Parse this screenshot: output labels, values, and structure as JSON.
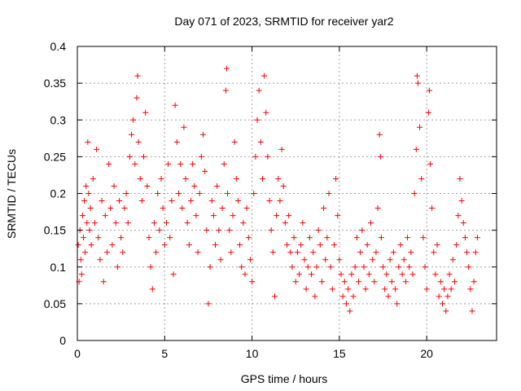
{
  "chart_data": {
    "type": "scatter",
    "title": "Day 071 of 2023, SRMTID for receiver yar2",
    "xlabel": "GPS time / hours",
    "ylabel": "SRMTID / TECUs",
    "xlim": [
      0,
      24
    ],
    "ylim": [
      0,
      0.4
    ],
    "xticks": [
      0,
      5,
      10,
      15,
      20
    ],
    "xtick_labels": [
      "0",
      "5",
      "10",
      "15",
      "20"
    ],
    "yticks": [
      0,
      0.05,
      0.1,
      0.15,
      0.2,
      0.25,
      0.3,
      0.35,
      0.4
    ],
    "ytick_labels": [
      "0",
      "0.05",
      "0.1",
      "0.15",
      "0.2",
      "0.25",
      "0.3",
      "0.35",
      "0.4"
    ],
    "grid": true,
    "marker": "+",
    "color": "#ff0000",
    "series": [
      {
        "name": "yar2",
        "points": [
          [
            0.05,
            0.13
          ],
          [
            0.1,
            0.08
          ],
          [
            0.15,
            0.15
          ],
          [
            0.2,
            0.11
          ],
          [
            0.25,
            0.09
          ],
          [
            0.3,
            0.17
          ],
          [
            0.35,
            0.14
          ],
          [
            0.4,
            0.19
          ],
          [
            0.45,
            0.12
          ],
          [
            0.5,
            0.21
          ],
          [
            0.55,
            0.16
          ],
          [
            0.6,
            0.27
          ],
          [
            0.65,
            0.2
          ],
          [
            0.7,
            0.15
          ],
          [
            0.75,
            0.18
          ],
          [
            0.8,
            0.13
          ],
          [
            0.9,
            0.22
          ],
          [
            1.0,
            0.16
          ],
          [
            1.1,
            0.26
          ],
          [
            1.2,
            0.14
          ],
          [
            1.3,
            0.11
          ],
          [
            1.4,
            0.19
          ],
          [
            1.5,
            0.08
          ],
          [
            1.6,
            0.17
          ],
          [
            1.7,
            0.12
          ],
          [
            1.8,
            0.24
          ],
          [
            1.9,
            0.18
          ],
          [
            2.0,
            0.13
          ],
          [
            2.1,
            0.21
          ],
          [
            2.2,
            0.16
          ],
          [
            2.3,
            0.1
          ],
          [
            2.4,
            0.19
          ],
          [
            2.5,
            0.14
          ],
          [
            2.6,
            0.12
          ],
          [
            2.7,
            0.18
          ],
          [
            2.8,
            0.2
          ],
          [
            2.9,
            0.16
          ],
          [
            3.0,
            0.25
          ],
          [
            3.1,
            0.28
          ],
          [
            3.2,
            0.3
          ],
          [
            3.3,
            0.24
          ],
          [
            3.4,
            0.33
          ],
          [
            3.45,
            0.36
          ],
          [
            3.5,
            0.27
          ],
          [
            3.6,
            0.22
          ],
          [
            3.7,
            0.19
          ],
          [
            3.8,
            0.25
          ],
          [
            3.9,
            0.31
          ],
          [
            4.0,
            0.21
          ],
          [
            4.1,
            0.14
          ],
          [
            4.2,
            0.1
          ],
          [
            4.3,
            0.07
          ],
          [
            4.4,
            0.16
          ],
          [
            4.5,
            0.12
          ],
          [
            4.6,
            0.2
          ],
          [
            4.7,
            0.15
          ],
          [
            4.8,
            0.22
          ],
          [
            4.9,
            0.18
          ],
          [
            5.0,
            0.13
          ],
          [
            5.1,
            0.16
          ],
          [
            5.2,
            0.24
          ],
          [
            5.3,
            0.14
          ],
          [
            5.4,
            0.19
          ],
          [
            5.5,
            0.09
          ],
          [
            5.6,
            0.32
          ],
          [
            5.7,
            0.27
          ],
          [
            5.8,
            0.2
          ],
          [
            5.9,
            0.24
          ],
          [
            6.0,
            0.18
          ],
          [
            6.1,
            0.29
          ],
          [
            6.2,
            0.22
          ],
          [
            6.3,
            0.16
          ],
          [
            6.4,
            0.13
          ],
          [
            6.5,
            0.19
          ],
          [
            6.6,
            0.24
          ],
          [
            6.7,
            0.21
          ],
          [
            6.8,
            0.17
          ],
          [
            6.9,
            0.12
          ],
          [
            7.0,
            0.2
          ],
          [
            7.1,
            0.25
          ],
          [
            7.2,
            0.28
          ],
          [
            7.3,
            0.23
          ],
          [
            7.4,
            0.15
          ],
          [
            7.5,
            0.05
          ],
          [
            7.6,
            0.1
          ],
          [
            7.7,
            0.19
          ],
          [
            7.8,
            0.17
          ],
          [
            7.9,
            0.13
          ],
          [
            8.0,
            0.21
          ],
          [
            8.1,
            0.15
          ],
          [
            8.2,
            0.11
          ],
          [
            8.3,
            0.18
          ],
          [
            8.4,
            0.24
          ],
          [
            8.5,
            0.34
          ],
          [
            8.55,
            0.37
          ],
          [
            8.6,
            0.2
          ],
          [
            8.7,
            0.15
          ],
          [
            8.8,
            0.12
          ],
          [
            8.9,
            0.17
          ],
          [
            9.0,
            0.27
          ],
          [
            9.1,
            0.22
          ],
          [
            9.2,
            0.19
          ],
          [
            9.3,
            0.13
          ],
          [
            9.4,
            0.1
          ],
          [
            9.5,
            0.16
          ],
          [
            9.6,
            0.09
          ],
          [
            9.7,
            0.18
          ],
          [
            9.8,
            0.14
          ],
          [
            9.9,
            0.11
          ],
          [
            10.0,
            0.08
          ],
          [
            10.1,
            0.2
          ],
          [
            10.2,
            0.25
          ],
          [
            10.3,
            0.3
          ],
          [
            10.4,
            0.34
          ],
          [
            10.5,
            0.27
          ],
          [
            10.6,
            0.22
          ],
          [
            10.7,
            0.36
          ],
          [
            10.8,
            0.31
          ],
          [
            10.9,
            0.25
          ],
          [
            11.0,
            0.19
          ],
          [
            11.1,
            0.15
          ],
          [
            11.2,
            0.12
          ],
          [
            11.3,
            0.06
          ],
          [
            11.4,
            0.17
          ],
          [
            11.5,
            0.22
          ],
          [
            11.6,
            0.19
          ],
          [
            11.7,
            0.26
          ],
          [
            11.8,
            0.21
          ],
          [
            11.9,
            0.16
          ],
          [
            12.0,
            0.13
          ],
          [
            12.1,
            0.17
          ],
          [
            12.2,
            0.12
          ],
          [
            12.3,
            0.1
          ],
          [
            12.4,
            0.14
          ],
          [
            12.5,
            0.08
          ],
          [
            12.6,
            0.12
          ],
          [
            12.7,
            0.09
          ],
          [
            12.8,
            0.13
          ],
          [
            12.9,
            0.16
          ],
          [
            13.0,
            0.11
          ],
          [
            13.1,
            0.07
          ],
          [
            13.2,
            0.1
          ],
          [
            13.3,
            0.14
          ],
          [
            13.4,
            0.09
          ],
          [
            13.5,
            0.12
          ],
          [
            13.6,
            0.06
          ],
          [
            13.7,
            0.1
          ],
          [
            13.8,
            0.15
          ],
          [
            13.9,
            0.13
          ],
          [
            14.0,
            0.08
          ],
          [
            14.1,
            0.18
          ],
          [
            14.2,
            0.11
          ],
          [
            14.3,
            0.14
          ],
          [
            14.4,
            0.2
          ],
          [
            14.5,
            0.1
          ],
          [
            14.6,
            0.07
          ],
          [
            14.7,
            0.13
          ],
          [
            14.8,
            0.22
          ],
          [
            14.9,
            0.17
          ],
          [
            15.0,
            0.11
          ],
          [
            15.1,
            0.09
          ],
          [
            15.2,
            0.06
          ],
          [
            15.3,
            0.08
          ],
          [
            15.4,
            0.05
          ],
          [
            15.5,
            0.07
          ],
          [
            15.6,
            0.04
          ],
          [
            15.7,
            0.09
          ],
          [
            15.8,
            0.06
          ],
          [
            15.9,
            0.1
          ],
          [
            16.0,
            0.14
          ],
          [
            16.1,
            0.08
          ],
          [
            16.2,
            0.12
          ],
          [
            16.3,
            0.15
          ],
          [
            16.4,
            0.1
          ],
          [
            16.5,
            0.07
          ],
          [
            16.6,
            0.13
          ],
          [
            16.7,
            0.09
          ],
          [
            16.8,
            0.16
          ],
          [
            16.9,
            0.11
          ],
          [
            17.0,
            0.08
          ],
          [
            17.1,
            0.12
          ],
          [
            17.2,
            0.18
          ],
          [
            17.3,
            0.28
          ],
          [
            17.35,
            0.25
          ],
          [
            17.4,
            0.14
          ],
          [
            17.5,
            0.1
          ],
          [
            17.6,
            0.07
          ],
          [
            17.7,
            0.09
          ],
          [
            17.8,
            0.06
          ],
          [
            17.9,
            0.11
          ],
          [
            18.0,
            0.08
          ],
          [
            18.1,
            0.12
          ],
          [
            18.2,
            0.07
          ],
          [
            18.3,
            0.05
          ],
          [
            18.4,
            0.1
          ],
          [
            18.5,
            0.13
          ],
          [
            18.6,
            0.09
          ],
          [
            18.7,
            0.11
          ],
          [
            18.8,
            0.08
          ],
          [
            18.9,
            0.14
          ],
          [
            19.0,
            0.1
          ],
          [
            19.1,
            0.12
          ],
          [
            19.2,
            0.09
          ],
          [
            19.3,
            0.2
          ],
          [
            19.4,
            0.26
          ],
          [
            19.45,
            0.36
          ],
          [
            19.5,
            0.35
          ],
          [
            19.6,
            0.29
          ],
          [
            19.7,
            0.22
          ],
          [
            19.8,
            0.14
          ],
          [
            19.9,
            0.1
          ],
          [
            20.0,
            0.07
          ],
          [
            20.1,
            0.31
          ],
          [
            20.15,
            0.34
          ],
          [
            20.2,
            0.24
          ],
          [
            20.3,
            0.18
          ],
          [
            20.4,
            0.12
          ],
          [
            20.5,
            0.09
          ],
          [
            20.6,
            0.13
          ],
          [
            20.7,
            0.06
          ],
          [
            20.8,
            0.08
          ],
          [
            20.9,
            0.05
          ],
          [
            21.0,
            0.07
          ],
          [
            21.1,
            0.04
          ],
          [
            21.2,
            0.06
          ],
          [
            21.3,
            0.09
          ],
          [
            21.4,
            0.07
          ],
          [
            21.5,
            0.11
          ],
          [
            21.6,
            0.08
          ],
          [
            21.7,
            0.13
          ],
          [
            21.8,
            0.17
          ],
          [
            21.9,
            0.22
          ],
          [
            22.0,
            0.19
          ],
          [
            22.1,
            0.16
          ],
          [
            22.2,
            0.14
          ],
          [
            22.3,
            0.12
          ],
          [
            22.4,
            0.1
          ],
          [
            22.5,
            0.07
          ],
          [
            22.6,
            0.04
          ],
          [
            22.7,
            0.08
          ],
          [
            22.8,
            0.12
          ],
          [
            22.9,
            0.14
          ]
        ]
      }
    ]
  }
}
